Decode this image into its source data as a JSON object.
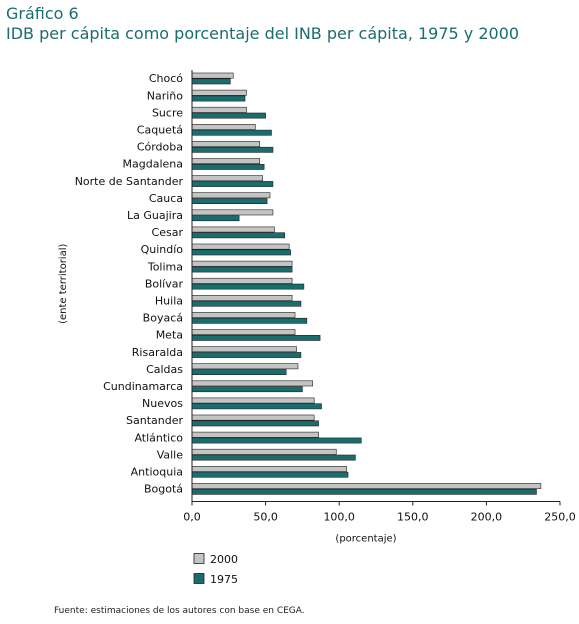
{
  "header": {
    "kicker": "Gráfico 6",
    "title": "IDB per cápita como porcentaje del INB per cápita, 1975 y 2000"
  },
  "chart_data": {
    "type": "bar",
    "orientation": "horizontal",
    "categories": [
      "Chocó",
      "Nariño",
      "Sucre",
      "Caquetá",
      "Córdoba",
      "Magdalena",
      "Norte de Santander",
      "Cauca",
      "La Guajira",
      "Cesar",
      "Quindío",
      "Tolima",
      "Bolívar",
      "Huila",
      "Boyacá",
      "Meta",
      "Risaralda",
      "Caldas",
      "Cundinamarca",
      "Nuevos",
      "Santander",
      "Atlántico",
      "Valle",
      "Antioquia",
      "Bogotá"
    ],
    "series": [
      {
        "name": "2000",
        "color": "#c4c4c4",
        "values": [
          28,
          37,
          37,
          43,
          46,
          46,
          48,
          53,
          55,
          56,
          66,
          68,
          68,
          68,
          70,
          70,
          71,
          72,
          82,
          83,
          83,
          86,
          98,
          105,
          237
        ]
      },
      {
        "name": "1975",
        "color": "#1a6d6f",
        "values": [
          26,
          36,
          50,
          54,
          55,
          49,
          55,
          51,
          32,
          63,
          67,
          68,
          76,
          74,
          78,
          87,
          74,
          64,
          75,
          88,
          86,
          115,
          111,
          106,
          234
        ]
      }
    ],
    "xlabel": "(porcentaje)",
    "ylabel": "(ente territorial)",
    "xlim": [
      0,
      250
    ],
    "xticks": [
      "0,0",
      "50,0",
      "100,0",
      "150,0",
      "200,0",
      "250,0"
    ],
    "grid": false,
    "legend_position": "bottom-left"
  },
  "footer": {
    "source": "Fuente: estimaciones de los autores con base en CEGA."
  }
}
